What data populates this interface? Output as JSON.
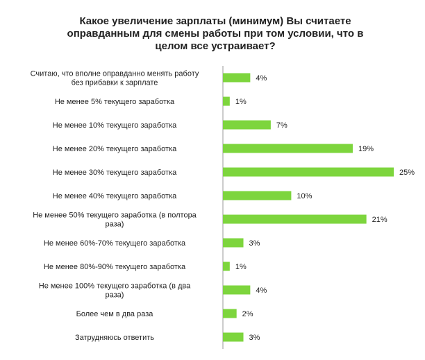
{
  "chart_data": {
    "type": "bar",
    "orientation": "horizontal",
    "title_lines": [
      "Какое увеличение зарплаты (минимум) Вы считаете",
      "оправданным для смены работы при том условии, что в",
      "целом все устраивает?"
    ],
    "categories": [
      [
        "Считаю, что вполне оправданно менять работу",
        "без прибавки к зарплате"
      ],
      [
        "Не менее 5% текущего заработка"
      ],
      [
        "Не менее 10% текущего заработка"
      ],
      [
        "Не менее 20% текущего заработка"
      ],
      [
        "Не менее 30% текущего заработка"
      ],
      [
        "Не менее 40% текущего заработка"
      ],
      [
        "Не менее 50% текущего заработка (в полтора",
        "раза)"
      ],
      [
        "Не менее 60%-70% текущего заработка"
      ],
      [
        "Не менее 80%-90% текущего заработка"
      ],
      [
        "Не менее 100% текущего заработка (в два",
        "раза)"
      ],
      [
        "Более чем в два раза"
      ],
      [
        "Затрудняюсь ответить"
      ]
    ],
    "values": [
      4,
      1,
      7,
      19,
      25,
      10,
      21,
      3,
      1,
      4,
      2,
      3
    ],
    "value_labels": [
      "4%",
      "1%",
      "7%",
      "19%",
      "25%",
      "10%",
      "21%",
      "3%",
      "1%",
      "4%",
      "2%",
      "3%"
    ],
    "xlim": [
      0,
      25
    ],
    "grid": false,
    "legend": "none",
    "bar_color": "#7dd53d"
  }
}
